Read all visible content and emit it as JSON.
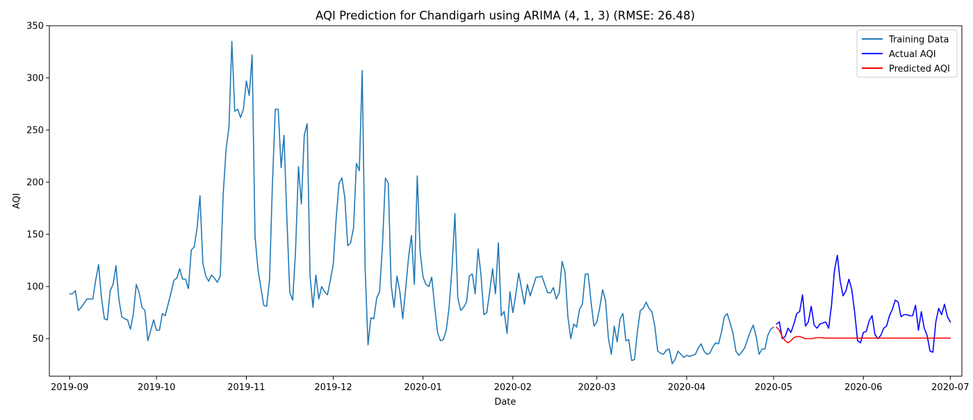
{
  "chart_data": {
    "type": "line",
    "title": "AQI Prediction for Chandigarh using ARIMA (4, 1, 3) (RMSE: 26.48)",
    "xlabel": "Date",
    "ylabel": "AQI",
    "xlim": [
      "2019-08-25",
      "2020-07-05"
    ],
    "ylim": [
      14,
      350
    ],
    "grid": false,
    "legend_position": "top-right",
    "x_ticks": [
      "2019-09",
      "2019-10",
      "2019-11",
      "2019-12",
      "2020-01",
      "2020-02",
      "2020-03",
      "2020-04",
      "2020-05",
      "2020-06",
      "2020-07"
    ],
    "y_ticks": [
      50,
      100,
      150,
      200,
      250,
      300,
      350
    ],
    "series": [
      {
        "name": "Training Data",
        "color": "#1f77b4",
        "x": [
          "2019-09-01",
          "2019-09-02",
          "2019-09-03",
          "2019-09-04",
          "2019-09-05",
          "2019-09-06",
          "2019-09-07",
          "2019-09-08",
          "2019-09-09",
          "2019-09-10",
          "2019-09-11",
          "2019-09-12",
          "2019-09-13",
          "2019-09-14",
          "2019-09-15",
          "2019-09-16",
          "2019-09-17",
          "2019-09-18",
          "2019-09-19",
          "2019-09-20",
          "2019-09-21",
          "2019-09-22",
          "2019-09-23",
          "2019-09-24",
          "2019-09-25",
          "2019-09-26",
          "2019-09-27",
          "2019-09-28",
          "2019-09-29",
          "2019-09-30",
          "2019-10-01",
          "2019-10-02",
          "2019-10-03",
          "2019-10-04",
          "2019-10-05",
          "2019-10-06",
          "2019-10-07",
          "2019-10-08",
          "2019-10-09",
          "2019-10-10",
          "2019-10-11",
          "2019-10-12",
          "2019-10-13",
          "2019-10-14",
          "2019-10-15",
          "2019-10-16",
          "2019-10-17",
          "2019-10-18",
          "2019-10-19",
          "2019-10-20",
          "2019-10-21",
          "2019-10-22",
          "2019-10-23",
          "2019-10-24",
          "2019-10-25",
          "2019-10-26",
          "2019-10-27",
          "2019-10-28",
          "2019-10-29",
          "2019-10-30",
          "2019-10-31",
          "2019-11-01",
          "2019-11-02",
          "2019-11-03",
          "2019-11-04",
          "2019-11-05",
          "2019-11-06",
          "2019-11-07",
          "2019-11-08",
          "2019-11-09",
          "2019-11-10",
          "2019-11-11",
          "2019-11-12",
          "2019-11-13",
          "2019-11-14",
          "2019-11-15",
          "2019-11-16",
          "2019-11-17",
          "2019-11-18",
          "2019-11-19",
          "2019-11-20",
          "2019-11-21",
          "2019-11-22",
          "2019-11-23",
          "2019-11-24",
          "2019-11-25",
          "2019-11-26",
          "2019-11-27",
          "2019-11-28",
          "2019-11-29",
          "2019-11-30",
          "2019-12-01",
          "2019-12-02",
          "2019-12-03",
          "2019-12-04",
          "2019-12-05",
          "2019-12-06",
          "2019-12-07",
          "2019-12-08",
          "2019-12-09",
          "2019-12-10",
          "2019-12-11",
          "2019-12-12",
          "2019-12-13",
          "2019-12-14",
          "2019-12-15",
          "2019-12-16",
          "2019-12-17",
          "2019-12-18",
          "2019-12-19",
          "2019-12-20",
          "2019-12-21",
          "2019-12-22",
          "2019-12-23",
          "2019-12-24",
          "2019-12-25",
          "2019-12-26",
          "2019-12-27",
          "2019-12-28",
          "2019-12-29",
          "2019-12-30",
          "2019-12-31",
          "2020-01-01",
          "2020-01-02",
          "2020-01-03",
          "2020-01-04",
          "2020-01-05",
          "2020-01-06",
          "2020-01-07",
          "2020-01-08",
          "2020-01-09",
          "2020-01-10",
          "2020-01-11",
          "2020-01-12",
          "2020-01-13",
          "2020-01-14",
          "2020-01-15",
          "2020-01-16",
          "2020-01-17",
          "2020-01-18",
          "2020-01-19",
          "2020-01-20",
          "2020-01-21",
          "2020-01-22",
          "2020-01-23",
          "2020-01-24",
          "2020-01-25",
          "2020-01-26",
          "2020-01-27",
          "2020-01-28",
          "2020-01-29",
          "2020-01-30",
          "2020-01-31",
          "2020-02-01",
          "2020-02-02",
          "2020-02-03",
          "2020-02-04",
          "2020-02-05",
          "2020-02-06",
          "2020-02-07",
          "2020-02-08",
          "2020-02-09",
          "2020-02-10",
          "2020-02-11",
          "2020-02-12",
          "2020-02-13",
          "2020-02-14",
          "2020-02-15",
          "2020-02-16",
          "2020-02-17",
          "2020-02-18",
          "2020-02-19",
          "2020-02-20",
          "2020-02-21",
          "2020-02-22",
          "2020-02-23",
          "2020-02-24",
          "2020-02-25",
          "2020-02-26",
          "2020-02-27",
          "2020-02-28",
          "2020-02-29",
          "2020-03-01",
          "2020-03-02",
          "2020-03-03",
          "2020-03-04",
          "2020-03-05",
          "2020-03-06",
          "2020-03-07",
          "2020-03-08",
          "2020-03-09",
          "2020-03-10",
          "2020-03-11",
          "2020-03-12",
          "2020-03-13",
          "2020-03-14",
          "2020-03-15",
          "2020-03-16",
          "2020-03-17",
          "2020-03-18",
          "2020-03-19",
          "2020-03-20",
          "2020-03-21",
          "2020-03-22",
          "2020-03-23",
          "2020-03-24",
          "2020-03-25",
          "2020-03-26",
          "2020-03-27",
          "2020-03-28",
          "2020-03-29",
          "2020-03-30",
          "2020-03-31",
          "2020-04-01",
          "2020-04-02",
          "2020-04-03",
          "2020-04-04",
          "2020-04-05",
          "2020-04-06",
          "2020-04-07",
          "2020-04-08",
          "2020-04-09",
          "2020-04-10",
          "2020-04-11",
          "2020-04-12",
          "2020-04-13",
          "2020-04-14",
          "2020-04-15",
          "2020-04-16",
          "2020-04-17",
          "2020-04-18",
          "2020-04-19",
          "2020-04-20",
          "2020-04-21",
          "2020-04-22",
          "2020-04-23",
          "2020-04-24",
          "2020-04-25",
          "2020-04-26",
          "2020-04-27",
          "2020-04-28",
          "2020-04-29",
          "2020-04-30",
          "2020-05-01"
        ],
        "values": [
          93,
          93,
          96,
          77,
          80,
          84,
          88,
          88,
          88,
          106,
          121,
          89,
          69,
          68,
          96,
          102,
          120,
          88,
          71,
          69,
          68,
          59,
          74,
          102,
          94,
          80,
          77,
          48,
          58,
          68,
          58,
          58,
          74,
          72,
          83,
          94,
          106,
          108,
          117,
          107,
          107,
          98,
          135,
          138,
          156,
          187,
          122,
          110,
          105,
          111,
          108,
          104,
          110,
          188,
          231,
          253,
          335,
          268,
          270,
          262,
          270,
          297,
          283,
          322,
          148,
          117,
          99,
          82,
          81,
          106,
          198,
          270,
          270,
          214,
          245,
          165,
          94,
          87,
          135,
          215,
          179,
          245,
          256,
          110,
          80,
          111,
          88,
          100,
          95,
          92,
          106,
          121,
          165,
          199,
          204,
          185,
          139,
          142,
          156,
          218,
          211,
          307,
          118,
          44,
          70,
          69,
          89,
          95,
          140,
          204,
          199,
          101,
          80,
          110,
          95,
          69,
          98,
          128,
          149,
          102,
          206,
          133,
          109,
          102,
          100,
          109,
          81,
          56,
          48,
          49,
          58,
          80,
          118,
          170,
          89,
          77,
          80,
          85,
          110,
          112,
          93,
          136,
          111,
          73,
          75,
          95,
          117,
          93,
          142,
          72,
          76,
          55,
          95,
          75,
          92,
          113,
          98,
          83,
          102,
          91,
          100,
          109,
          109,
          110,
          102,
          94,
          94,
          99,
          88,
          94,
          124,
          114,
          71,
          50,
          64,
          61,
          78,
          83,
          112,
          112,
          85,
          62,
          66,
          80,
          97,
          86,
          50,
          35,
          62,
          47,
          69,
          74,
          48,
          49,
          29,
          30,
          57,
          77,
          79,
          85,
          79,
          76,
          62,
          38,
          36,
          35,
          39,
          40,
          26,
          30,
          38,
          35,
          32,
          34,
          33,
          34,
          35,
          41,
          45,
          38,
          35,
          36,
          42,
          46,
          45,
          56,
          71,
          74,
          65,
          55,
          38,
          34,
          37,
          41,
          49,
          57,
          63,
          52,
          35,
          40,
          40,
          53,
          59,
          61
        ]
      },
      {
        "name": "Actual AQI",
        "color": "#0000ff",
        "x": [
          "2020-05-02",
          "2020-05-03",
          "2020-05-04",
          "2020-05-05",
          "2020-05-06",
          "2020-05-07",
          "2020-05-08",
          "2020-05-09",
          "2020-05-10",
          "2020-05-11",
          "2020-05-12",
          "2020-05-13",
          "2020-05-14",
          "2020-05-15",
          "2020-05-16",
          "2020-05-17",
          "2020-05-18",
          "2020-05-19",
          "2020-05-20",
          "2020-05-21",
          "2020-05-22",
          "2020-05-23",
          "2020-05-24",
          "2020-05-25",
          "2020-05-26",
          "2020-05-27",
          "2020-05-28",
          "2020-05-29",
          "2020-05-30",
          "2020-05-31",
          "2020-06-01",
          "2020-06-02",
          "2020-06-03",
          "2020-06-04",
          "2020-06-05",
          "2020-06-06",
          "2020-06-07",
          "2020-06-08",
          "2020-06-09",
          "2020-06-10",
          "2020-06-11",
          "2020-06-12",
          "2020-06-13",
          "2020-06-14",
          "2020-06-15",
          "2020-06-16",
          "2020-06-17",
          "2020-06-18",
          "2020-06-19",
          "2020-06-20",
          "2020-06-21",
          "2020-06-22",
          "2020-06-23",
          "2020-06-24",
          "2020-06-25",
          "2020-06-26",
          "2020-06-27",
          "2020-06-28",
          "2020-06-29",
          "2020-06-30",
          "2020-07-01"
        ],
        "values": [
          64,
          66,
          50,
          52,
          60,
          56,
          64,
          74,
          76,
          92,
          62,
          66,
          81,
          63,
          60,
          64,
          65,
          66,
          60,
          82,
          115,
          130,
          105,
          91,
          96,
          107,
          97,
          75,
          48,
          46,
          56,
          57,
          67,
          72,
          54,
          50,
          53,
          60,
          62,
          72,
          78,
          87,
          85,
          71,
          73,
          73,
          72,
          72,
          82,
          58,
          76,
          60,
          53,
          38,
          37,
          66,
          79,
          73,
          83,
          71,
          66
        ]
      },
      {
        "name": "Predicted AQI",
        "color": "#ff0000",
        "x": [
          "2020-05-02",
          "2020-05-03",
          "2020-05-04",
          "2020-05-05",
          "2020-05-06",
          "2020-05-07",
          "2020-05-08",
          "2020-05-09",
          "2020-05-10",
          "2020-05-11",
          "2020-05-12",
          "2020-05-13",
          "2020-05-14",
          "2020-05-15",
          "2020-05-16",
          "2020-05-17",
          "2020-05-18",
          "2020-05-19",
          "2020-05-20",
          "2020-05-21",
          "2020-05-22",
          "2020-05-23",
          "2020-05-24",
          "2020-05-25",
          "2020-05-26",
          "2020-05-27",
          "2020-05-28",
          "2020-05-29",
          "2020-05-30",
          "2020-05-31",
          "2020-06-01",
          "2020-06-02",
          "2020-06-03",
          "2020-06-04",
          "2020-06-05",
          "2020-06-06",
          "2020-06-07",
          "2020-06-08",
          "2020-06-09",
          "2020-06-10",
          "2020-06-11",
          "2020-06-12",
          "2020-06-13",
          "2020-06-14",
          "2020-06-15",
          "2020-06-16",
          "2020-06-17",
          "2020-06-18",
          "2020-06-19",
          "2020-06-20",
          "2020-06-21",
          "2020-06-22",
          "2020-06-23",
          "2020-06-24",
          "2020-06-25",
          "2020-06-26",
          "2020-06-27",
          "2020-06-28",
          "2020-06-29",
          "2020-06-30",
          "2020-07-01"
        ],
        "values": [
          61,
          58,
          52,
          48,
          46,
          48,
          51,
          52,
          52,
          51,
          50,
          50,
          50,
          50.5,
          51,
          51,
          50.8,
          50.5,
          50.5,
          50.5,
          50.5,
          50.5,
          50.5,
          50.5,
          50.5,
          50.5,
          50.5,
          50.5,
          50.5,
          50.5,
          50.5,
          50.5,
          50.5,
          50.5,
          50.5,
          50.5,
          50.5,
          50.5,
          50.5,
          50.5,
          50.5,
          50.5,
          50.5,
          50.5,
          50.5,
          50.5,
          50.5,
          50.5,
          50.5,
          50.5,
          50.5,
          50.5,
          50.5,
          50.5,
          50.5,
          50.5,
          50.5,
          50.5,
          50.5,
          50.5,
          50.5
        ]
      }
    ]
  }
}
